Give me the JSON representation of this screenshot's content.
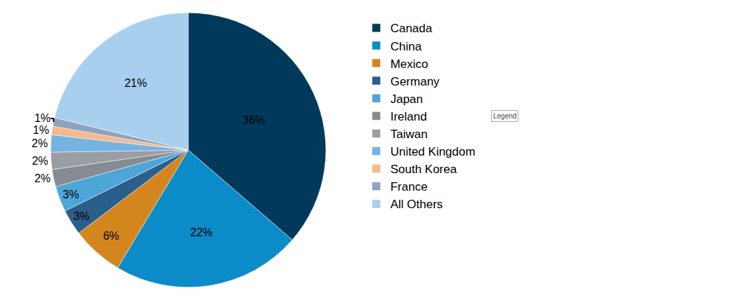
{
  "chart_data": {
    "type": "pie",
    "categories": [
      "Canada",
      "China",
      "Mexico",
      "Germany",
      "Japan",
      "Ireland",
      "Taiwan",
      "United Kingdom",
      "South Korea",
      "France",
      "All Others"
    ],
    "values": [
      36,
      22,
      6,
      3,
      3,
      2,
      2,
      2,
      1,
      1,
      21
    ],
    "value_labels": [
      "36%",
      "22%",
      "6%",
      "3%",
      "3%",
      "2%",
      "2%",
      "2%",
      "1%",
      "1%",
      "21%"
    ],
    "colors": [
      "#00395a",
      "#0b8bc7",
      "#d4861e",
      "#2b5f8b",
      "#4ea6d8",
      "#858b92",
      "#9a9ea3",
      "#74b4e2",
      "#f4b98c",
      "#8fa3bd",
      "#a9cfef"
    ],
    "data_labels": true,
    "legend": "right",
    "annotations": [
      "Legend"
    ]
  }
}
